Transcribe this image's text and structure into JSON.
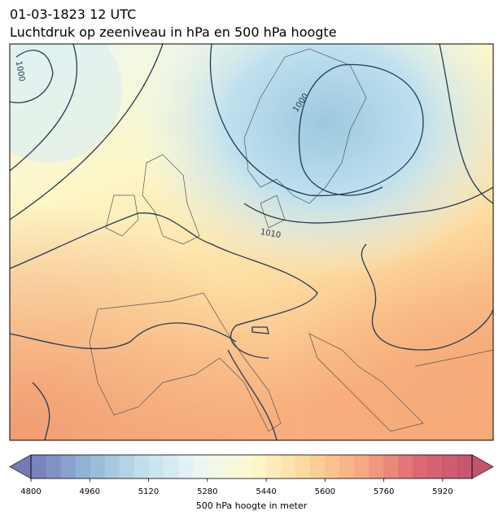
{
  "header": {
    "title": "01-03-1823 12 UTC",
    "subtitle": "Luchtdruk op zeeniveau in hPa en 500 hPa hoogte"
  },
  "map": {
    "contour_labels": [
      1000,
      1000,
      1010
    ]
  },
  "colorbar": {
    "label": "500 hPa hoogte in meter",
    "range": [
      4800,
      6000
    ],
    "step": 40,
    "ticks": [
      4800,
      4960,
      5120,
      5280,
      5440,
      5600,
      5760,
      5920
    ],
    "colors": [
      "#5e65ad",
      "#7ea8cf",
      "#b5d9e8",
      "#e6f4f5",
      "#fdf9c4",
      "#fdd08a",
      "#f49a6a",
      "#d9505a",
      "#b83755"
    ]
  }
}
